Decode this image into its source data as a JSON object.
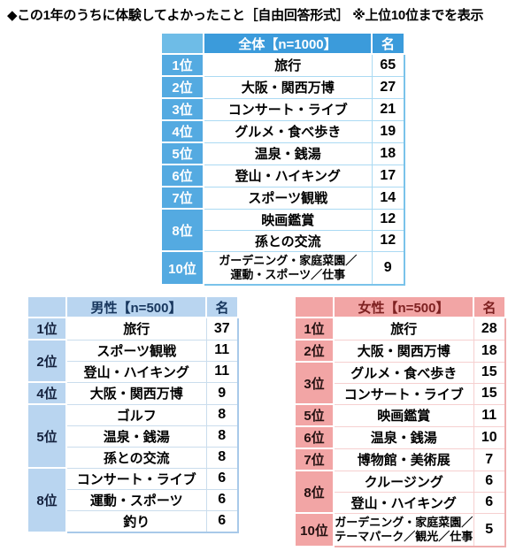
{
  "title": "◆この1年のうちに体験してよかったこと［自由回答形式］ ※上位10位までを表示",
  "colors": {
    "overall_header": "#3b9bdb",
    "overall_rank": "#54aae1",
    "overall_grid": "#abdaf3",
    "male_fill": "#b9d5f0",
    "male_text": "#17365d",
    "female_fill": "#f2a5a5",
    "female_text": "#7e2121",
    "body_text": "#000000"
  },
  "chart_data": [
    {
      "type": "table",
      "title": "全体【n=1000】",
      "unit_label": "名",
      "ranks": [
        {
          "label": "1位",
          "span": 1
        },
        {
          "label": "2位",
          "span": 1
        },
        {
          "label": "3位",
          "span": 1
        },
        {
          "label": "4位",
          "span": 1
        },
        {
          "label": "5位",
          "span": 1
        },
        {
          "label": "6位",
          "span": 1
        },
        {
          "label": "7位",
          "span": 1
        },
        {
          "label": "8位",
          "span": 2
        },
        {
          "label": "10位",
          "span": 1
        }
      ],
      "items": [
        {
          "label": "旅行",
          "value": 65
        },
        {
          "label": "大阪・関西万博",
          "value": 27
        },
        {
          "label": "コンサート・ライブ",
          "value": 21
        },
        {
          "label": "グルメ・食べ歩き",
          "value": 19
        },
        {
          "label": "温泉・銭湯",
          "value": 18
        },
        {
          "label": "登山・ハイキング",
          "value": 17
        },
        {
          "label": "スポーツ観戦",
          "value": 14
        },
        {
          "label": "映画鑑賞",
          "value": 12
        },
        {
          "label": "孫との交流",
          "value": 12
        },
        {
          "label": "ガーデニング・家庭菜園／\n運動・スポーツ／仕事",
          "value": 9
        }
      ]
    },
    {
      "type": "table",
      "title": "男性【n=500】",
      "unit_label": "名",
      "ranks": [
        {
          "label": "1位",
          "span": 1
        },
        {
          "label": "2位",
          "span": 2
        },
        {
          "label": "4位",
          "span": 1
        },
        {
          "label": "5位",
          "span": 3
        },
        {
          "label": "8位",
          "span": 3
        }
      ],
      "items": [
        {
          "label": "旅行",
          "value": 37
        },
        {
          "label": "スポーツ観戦",
          "value": 11
        },
        {
          "label": "登山・ハイキング",
          "value": 11
        },
        {
          "label": "大阪・関西万博",
          "value": 9
        },
        {
          "label": "ゴルフ",
          "value": 8
        },
        {
          "label": "温泉・銭湯",
          "value": 8
        },
        {
          "label": "孫との交流",
          "value": 8
        },
        {
          "label": "コンサート・ライブ",
          "value": 6
        },
        {
          "label": "運動・スポーツ",
          "value": 6
        },
        {
          "label": "釣り",
          "value": 6
        }
      ]
    },
    {
      "type": "table",
      "title": "女性【n=500】",
      "unit_label": "名",
      "ranks": [
        {
          "label": "1位",
          "span": 1
        },
        {
          "label": "2位",
          "span": 1
        },
        {
          "label": "3位",
          "span": 2
        },
        {
          "label": "5位",
          "span": 1
        },
        {
          "label": "6位",
          "span": 1
        },
        {
          "label": "7位",
          "span": 1
        },
        {
          "label": "8位",
          "span": 2
        },
        {
          "label": "10位",
          "span": 1
        }
      ],
      "items": [
        {
          "label": "旅行",
          "value": 28
        },
        {
          "label": "大阪・関西万博",
          "value": 18
        },
        {
          "label": "グルメ・食べ歩き",
          "value": 15
        },
        {
          "label": "コンサート・ライブ",
          "value": 15
        },
        {
          "label": "映画鑑賞",
          "value": 11
        },
        {
          "label": "温泉・銭湯",
          "value": 10
        },
        {
          "label": "博物館・美術展",
          "value": 7
        },
        {
          "label": "クルージング",
          "value": 6
        },
        {
          "label": "登山・ハイキング",
          "value": 6
        },
        {
          "label": "ガーデニング・家庭菜園／\nテーマパーク／観光／仕事",
          "value": 5
        }
      ]
    }
  ]
}
